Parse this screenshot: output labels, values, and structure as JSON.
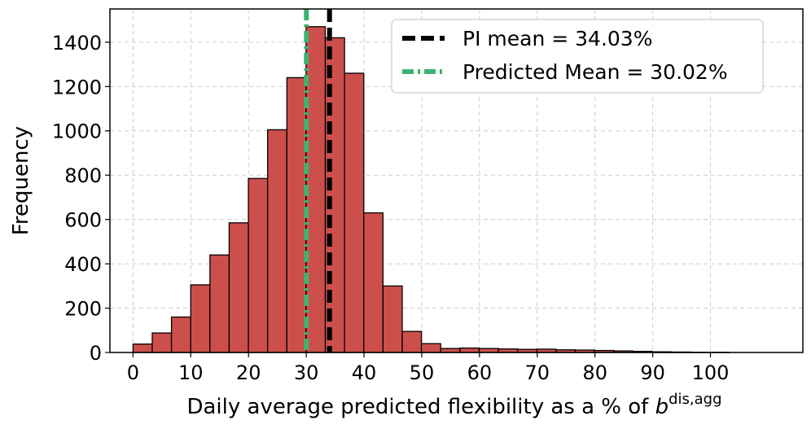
{
  "chart_data": {
    "type": "bar",
    "subtype": "histogram",
    "xlabel": "Daily average predicted flexibility as a % of ",
    "xlabel_math": "b",
    "xlabel_superscript": "dis,agg",
    "ylabel": "Frequency",
    "xlim": [
      -4,
      116
    ],
    "ylim": [
      0,
      1550
    ],
    "xticks": [
      0,
      10,
      20,
      30,
      40,
      50,
      60,
      70,
      80,
      90,
      100
    ],
    "yticks": [
      0,
      200,
      400,
      600,
      800,
      1000,
      1200,
      1400
    ],
    "grid": true,
    "bin_width": 3.33,
    "bin_start": 0,
    "bar_color": "#cd4f4b",
    "bar_edge_color": "#000000",
    "values": [
      38,
      88,
      160,
      305,
      440,
      585,
      785,
      1005,
      1240,
      1470,
      1420,
      1260,
      630,
      300,
      95,
      40,
      18,
      20,
      18,
      16,
      14,
      15,
      12,
      11,
      9,
      7,
      5,
      3,
      2,
      1,
      1,
      0,
      0
    ],
    "lines": [
      {
        "name": "PI mean = 34.03%",
        "x": 34.03,
        "color": "#000000",
        "style": "dashed"
      },
      {
        "name": "Predicted Mean = 30.02%",
        "x": 30.02,
        "color": "#3cb371",
        "style": "dashdot"
      }
    ],
    "legend_position": "top-right"
  }
}
